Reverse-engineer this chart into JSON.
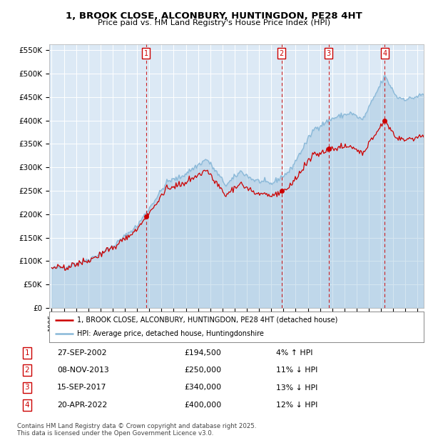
{
  "title": "1, BROOK CLOSE, ALCONBURY, HUNTINGDON, PE28 4HT",
  "subtitle": "Price paid vs. HM Land Registry's House Price Index (HPI)",
  "legend_label_red": "1, BROOK CLOSE, ALCONBURY, HUNTINGDON, PE28 4HT (detached house)",
  "legend_label_blue": "HPI: Average price, detached house, Huntingdonshire",
  "transactions": [
    {
      "num": 1,
      "date": "27-SEP-2002",
      "price": 194500,
      "pct": "4%",
      "dir": "↑"
    },
    {
      "num": 2,
      "date": "08-NOV-2013",
      "price": 250000,
      "pct": "11%",
      "dir": "↓"
    },
    {
      "num": 3,
      "date": "15-SEP-2017",
      "price": 340000,
      "pct": "13%",
      "dir": "↓"
    },
    {
      "num": 4,
      "date": "20-APR-2022",
      "price": 400000,
      "pct": "12%",
      "dir": "↓"
    }
  ],
  "transaction_years": [
    2002.75,
    2013.85,
    2017.71,
    2022.3
  ],
  "transaction_prices": [
    194500,
    250000,
    340000,
    400000
  ],
  "footer": "Contains HM Land Registry data © Crown copyright and database right 2025.\nThis data is licensed under the Open Government Licence v3.0.",
  "bg_color": "#dce9f5",
  "red_color": "#cc0000",
  "blue_color": "#89b8d8",
  "grid_color": "#ffffff",
  "ylim": [
    0,
    562500
  ],
  "yticks": [
    0,
    50000,
    100000,
    150000,
    200000,
    250000,
    300000,
    350000,
    400000,
    450000,
    500000,
    550000
  ],
  "xlim_start": 1994.8,
  "xlim_end": 2025.5
}
